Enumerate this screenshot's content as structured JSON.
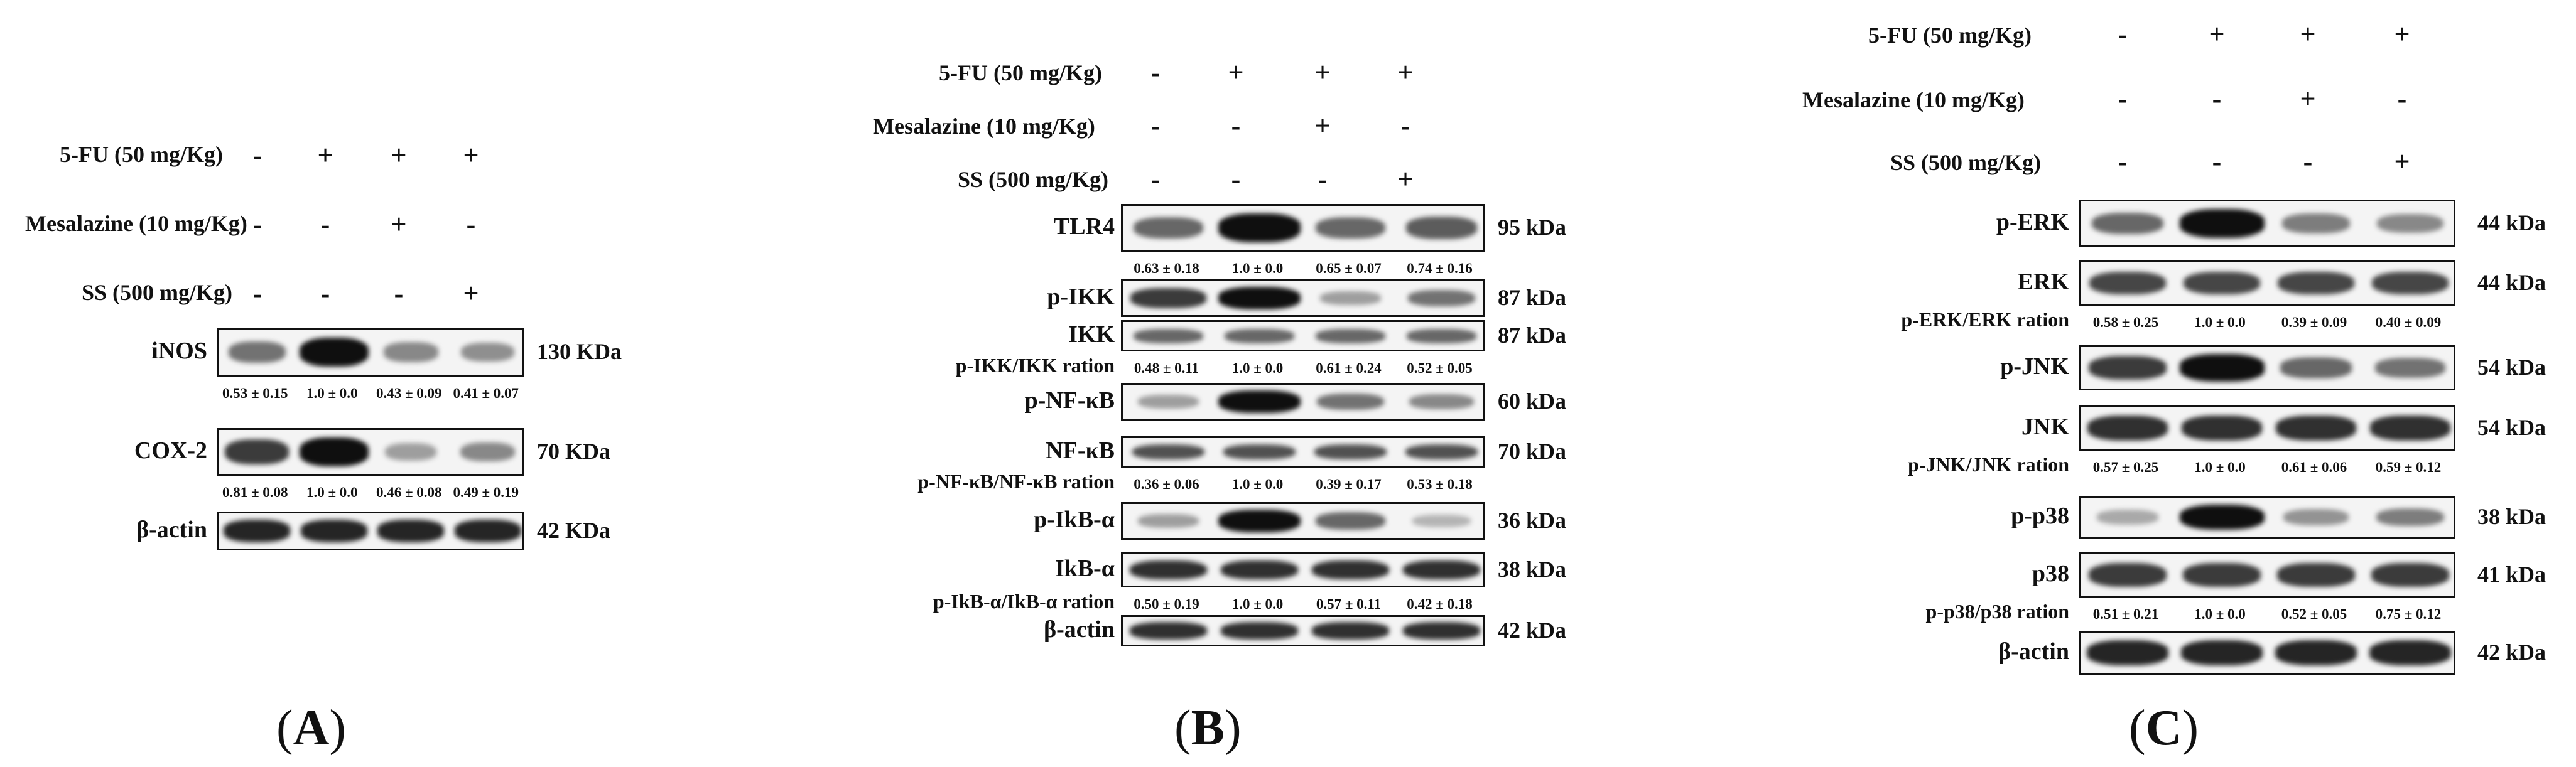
{
  "conditions": {
    "fu": "5-FU (50 mg/Kg)",
    "mes": "Mesalazine (10 mg/Kg)",
    "ss": "SS (500 mg/Kg)",
    "fu_signs": [
      "-",
      "+",
      "+",
      "+"
    ],
    "mes_signs": [
      "-",
      "-",
      "+",
      "-"
    ],
    "ss_signs": [
      "-",
      "-",
      "-",
      "+"
    ]
  },
  "panel_a": {
    "caption_letter": "A",
    "rows": [
      {
        "label": "iNOS",
        "kda": "130 KDa",
        "intensity": [
          0.55,
          1.0,
          0.45,
          0.42
        ],
        "stats": [
          "0.53 ± 0.15",
          "1.0 ± 0.0",
          "0.43 ± 0.09",
          "0.41 ± 0.07"
        ]
      },
      {
        "label": "COX-2",
        "kda": "70 KDa",
        "intensity": [
          0.8,
          1.0,
          0.35,
          0.45
        ],
        "stats": [
          "0.81 ± 0.08",
          "1.0 ± 0.0",
          "0.46 ± 0.08",
          "0.49 ± 0.19"
        ]
      },
      {
        "label": "β-actin",
        "kda": "42 KDa",
        "intensity": [
          0.9,
          0.9,
          0.9,
          0.9
        ],
        "stats": []
      }
    ]
  },
  "panel_b": {
    "caption_letter": "B",
    "rows": [
      {
        "label": "TLR4",
        "kda": "95 kDa",
        "intensity": [
          0.6,
          1.0,
          0.6,
          0.65
        ],
        "stats": [
          "0.63 ± 0.18",
          "1.0 ± 0.0",
          "0.65 ± 0.07",
          "0.74 ± 0.16"
        ],
        "ratio": ""
      },
      {
        "label": "p-IKK",
        "kda": "87 kDa",
        "intensity": [
          0.8,
          1.0,
          0.35,
          0.55
        ],
        "stats": [],
        "ratio": ""
      },
      {
        "label": "IKK",
        "kda": "87 kDa",
        "intensity": [
          0.6,
          0.6,
          0.6,
          0.6
        ],
        "stats": [
          "0.48 ± 0.11",
          "1.0 ± 0.0",
          "0.61 ± 0.24",
          "0.52 ± 0.05"
        ],
        "ratio": "p-IKK/IKK ration"
      },
      {
        "label": "p-NF-κB",
        "kda": "60 kDa",
        "intensity": [
          0.35,
          1.0,
          0.55,
          0.45
        ],
        "stats": [],
        "ratio": ""
      },
      {
        "label": "NF-κB",
        "kda": "70 kDa",
        "intensity": [
          0.7,
          0.7,
          0.7,
          0.7
        ],
        "stats": [
          "0.36 ± 0.06",
          "1.0 ± 0.0",
          "0.39 ± 0.17",
          "0.53 ± 0.18"
        ],
        "ratio": "p-NF-κB/NF-κB ration"
      },
      {
        "label": "p-IkB-α",
        "kda": "36 kDa",
        "intensity": [
          0.35,
          1.0,
          0.6,
          0.25
        ],
        "stats": [],
        "ratio": ""
      },
      {
        "label": "IkB-α",
        "kda": "38 kDa",
        "intensity": [
          0.85,
          0.85,
          0.85,
          0.85
        ],
        "stats": [
          "0.50 ± 0.19",
          "1.0 ± 0.0",
          "0.57 ± 0.11",
          "0.42 ± 0.18"
        ],
        "ratio": "p-IkB-α/IkB-α ration"
      },
      {
        "label": "β-actin",
        "kda": "42 kDa",
        "intensity": [
          0.85,
          0.85,
          0.85,
          0.85
        ],
        "stats": [],
        "ratio": ""
      }
    ]
  },
  "panel_c": {
    "caption_letter": "C",
    "rows": [
      {
        "label": "p-ERK",
        "kda": "44 kDa",
        "intensity": [
          0.6,
          1.0,
          0.5,
          0.45
        ],
        "stats": [],
        "ratio": ""
      },
      {
        "label": "ERK",
        "kda": "44 kDa",
        "intensity": [
          0.75,
          0.75,
          0.75,
          0.75
        ],
        "stats": [
          "0.58 ± 0.25",
          "1.0 ± 0.0",
          "0.39 ± 0.09",
          "0.40 ± 0.09"
        ],
        "ratio": "p-ERK/ERK ration"
      },
      {
        "label": "p-JNK",
        "kda": "54 kDa",
        "intensity": [
          0.8,
          1.0,
          0.6,
          0.55
        ],
        "stats": [],
        "ratio": ""
      },
      {
        "label": "JNK",
        "kda": "54 kDa",
        "intensity": [
          0.85,
          0.85,
          0.85,
          0.85
        ],
        "stats": [
          "0.57 ± 0.25",
          "1.0 ± 0.0",
          "0.61 ± 0.06",
          "0.59 ± 0.12"
        ],
        "ratio": "p-JNK/JNK ration"
      },
      {
        "label": "p-p38",
        "kda": "38 kDa",
        "intensity": [
          0.3,
          1.0,
          0.4,
          0.5
        ],
        "stats": [],
        "ratio": ""
      },
      {
        "label": "p38",
        "kda": "41 kDa",
        "intensity": [
          0.8,
          0.8,
          0.8,
          0.8
        ],
        "stats": [
          "0.51 ± 0.21",
          "1.0 ± 0.0",
          "0.52 ± 0.05",
          "0.75 ± 0.12"
        ],
        "ratio": "p-p38/p38 ration"
      },
      {
        "label": "β-actin",
        "kda": "42 kDa",
        "intensity": [
          0.9,
          0.9,
          0.9,
          0.9
        ],
        "stats": [],
        "ratio": ""
      }
    ]
  }
}
